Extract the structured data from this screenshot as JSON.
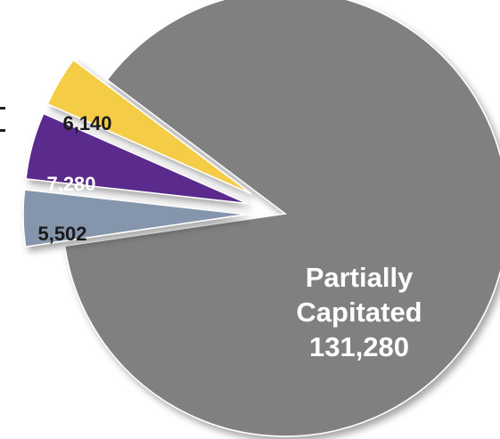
{
  "chart_data": {
    "type": "pie",
    "exploded": true,
    "slices": [
      {
        "label_lines": [
          "Partially",
          "Capitated",
          "131,280"
        ],
        "value": 131280,
        "color": "#808080",
        "label_color": "#ffffff"
      },
      {
        "label_lines": [
          "6,140"
        ],
        "value": 6140,
        "color": "#8596ac",
        "label_color": "#1a1a1a"
      },
      {
        "label_lines": [
          "7,280"
        ],
        "value": 7280,
        "color": "#5a2a8c",
        "label_color": "#ffffff"
      },
      {
        "label_lines": [
          "5,502"
        ],
        "value": 5502,
        "color": "#f5cc44",
        "label_color": "#1a1a1a"
      }
    ]
  }
}
